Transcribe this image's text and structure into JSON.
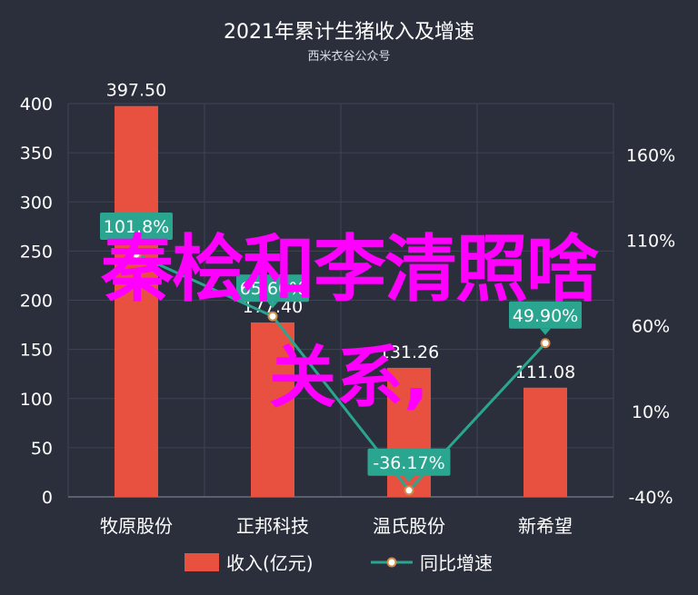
{
  "chart_data": {
    "type": "bar",
    "title": "2021年累计生猪收入及增速",
    "subtitle": "西米衣谷公众号",
    "categories": [
      "牧原股份",
      "正邦科技",
      "温氏股份",
      "新希望"
    ],
    "series": [
      {
        "name": "收入(亿元)",
        "type": "bar",
        "axis": "left",
        "values": [
          397.5,
          177.4,
          131.26,
          111.08
        ],
        "labels": [
          "397.50",
          "177.40",
          "131.26",
          "111.08"
        ]
      },
      {
        "name": "同比增速",
        "type": "line",
        "axis": "right",
        "values": [
          101.8,
          65.6,
          -36.17,
          49.9
        ],
        "labels": [
          "101.8%",
          "65.60%",
          "-36.17%",
          "49.90%"
        ]
      }
    ],
    "y_left": {
      "min": 0,
      "max": 400,
      "ticks": [
        "0",
        "50",
        "100",
        "150",
        "200",
        "250",
        "300",
        "350",
        "400"
      ]
    },
    "y_right": {
      "min": -40,
      "max": 190,
      "ticks": [
        "-40%",
        "10%",
        "60%",
        "110%",
        "160%"
      ]
    },
    "grid": true,
    "legend_position": "bottom",
    "colors": {
      "background": "#2b2f3c",
      "bar": "#e8513f",
      "line": "#2aa590",
      "grid": "#3e4452",
      "text": "#ffffff",
      "overlay": "#ff00ff"
    }
  },
  "overlay": {
    "line1": "秦桧和李清照啥",
    "line2": "关系,"
  }
}
